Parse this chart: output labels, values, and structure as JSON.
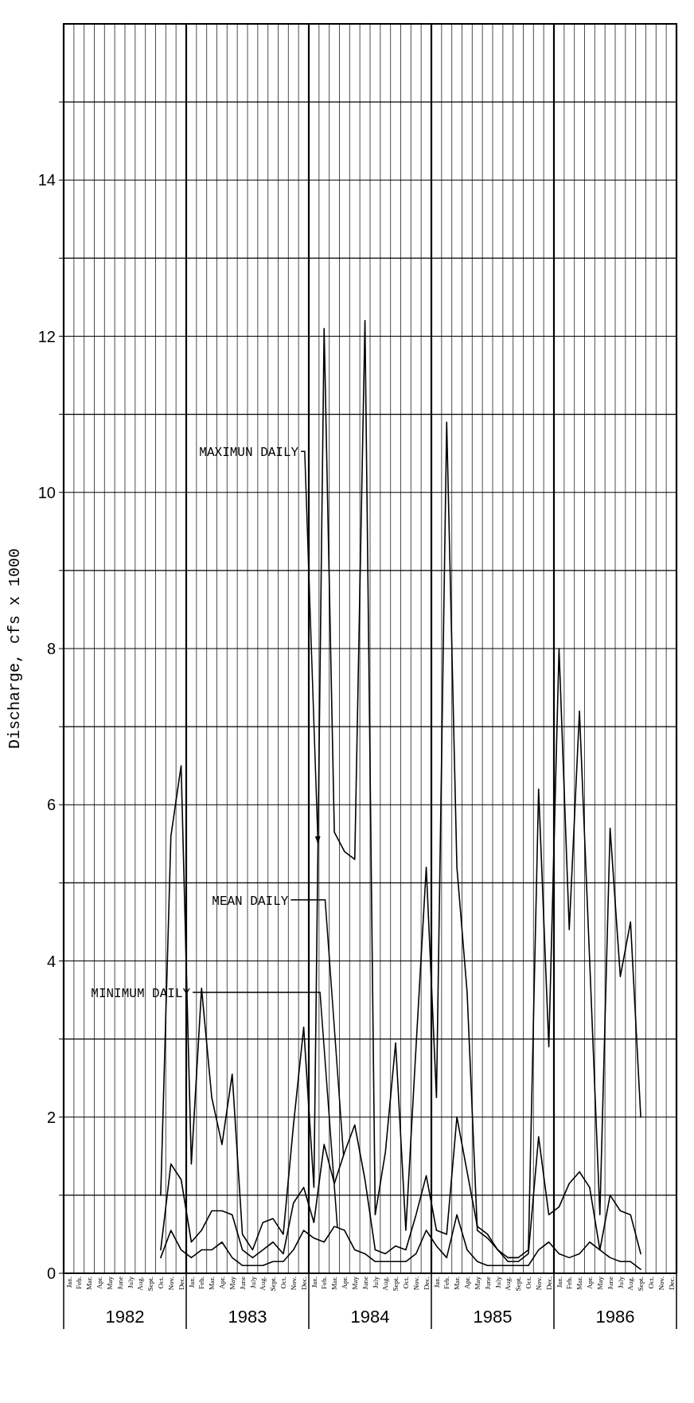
{
  "chart_data": {
    "type": "line",
    "ylabel": "Discharge, cfs x 1000",
    "categories": [
      "Jan.",
      "Feb.",
      "Mar.",
      "Apr.",
      "May",
      "June",
      "July",
      "Aug.",
      "Sept.",
      "Oct.",
      "Nov.",
      "Dec.",
      "Jan.",
      "Feb.",
      "Mar.",
      "Apr.",
      "May",
      "June",
      "July",
      "Aug.",
      "Sept.",
      "Oct.",
      "Nov.",
      "Dec.",
      "Jan.",
      "Feb.",
      "Mar.",
      "Apr.",
      "May",
      "June",
      "July",
      "Aug.",
      "Sept.",
      "Oct.",
      "Nov.",
      "Dec.",
      "Jan.",
      "Feb.",
      "Mar.",
      "Apr.",
      "May",
      "June",
      "July",
      "Aug.",
      "Sept.",
      "Oct.",
      "Nov.",
      "Dec.",
      "Jan.",
      "Feb.",
      "Mar.",
      "Apr.",
      "May",
      "June",
      "July",
      "Aug.",
      "Sept.",
      "Oct.",
      "Nov.",
      "Dec."
    ],
    "series": [
      {
        "name": "MAXIMUN DAILY",
        "color": "#000000",
        "values": [
          null,
          null,
          null,
          null,
          null,
          null,
          null,
          null,
          null,
          1.0,
          5.6,
          6.5,
          1.4,
          3.65,
          2.25,
          1.65,
          2.55,
          0.5,
          0.3,
          0.65,
          0.7,
          0.5,
          1.9,
          3.15,
          1.1,
          12.1,
          5.65,
          5.4,
          5.3,
          12.2,
          0.75,
          1.55,
          2.95,
          0.55,
          2.9,
          5.2,
          2.25,
          10.9,
          5.2,
          3.6,
          0.55,
          0.45,
          0.3,
          0.2,
          0.2,
          0.3,
          6.2,
          2.9,
          8.0,
          4.4,
          7.2,
          4.0,
          0.75,
          5.7,
          3.8,
          4.5,
          2.0,
          null,
          null,
          null
        ]
      },
      {
        "name": "MEAN DAILY",
        "color": "#000000",
        "values": [
          null,
          null,
          null,
          null,
          null,
          null,
          null,
          null,
          null,
          0.3,
          1.4,
          1.2,
          0.4,
          0.55,
          0.8,
          0.8,
          0.75,
          0.3,
          0.2,
          0.3,
          0.4,
          0.25,
          0.9,
          1.1,
          0.65,
          1.65,
          1.15,
          1.55,
          1.9,
          1.2,
          0.3,
          0.25,
          0.35,
          0.3,
          0.75,
          1.25,
          0.55,
          0.5,
          2.0,
          1.3,
          0.6,
          0.5,
          0.3,
          0.15,
          0.15,
          0.25,
          1.75,
          0.75,
          0.85,
          1.15,
          1.3,
          1.1,
          0.3,
          1.0,
          0.8,
          0.75,
          0.25,
          null,
          null,
          null
        ]
      },
      {
        "name": "MINIMUM DAILY",
        "color": "#000000",
        "values": [
          null,
          null,
          null,
          null,
          null,
          null,
          null,
          null,
          null,
          0.2,
          0.55,
          0.3,
          0.2,
          0.3,
          0.3,
          0.4,
          0.2,
          0.1,
          0.1,
          0.1,
          0.15,
          0.15,
          0.3,
          0.55,
          0.45,
          0.4,
          0.6,
          0.55,
          0.3,
          0.25,
          0.15,
          0.15,
          0.15,
          0.15,
          0.25,
          0.55,
          0.35,
          0.2,
          0.75,
          0.3,
          0.15,
          0.1,
          0.1,
          0.1,
          0.1,
          0.1,
          0.3,
          0.4,
          0.25,
          0.2,
          0.25,
          0.4,
          0.3,
          0.2,
          0.15,
          0.15,
          0.05,
          null,
          null,
          null
        ]
      }
    ],
    "ylim": [
      0,
      16
    ],
    "yticks": [
      0,
      {
        "value": 1,
        "label": null
      },
      2,
      {
        "value": 3,
        "label": null
      },
      4,
      {
        "value": 5,
        "label": null
      },
      6,
      {
        "value": 7,
        "label": null
      },
      8,
      {
        "value": 9,
        "label": null
      },
      10,
      {
        "value": 11,
        "label": null
      },
      12,
      {
        "value": 13,
        "label": null
      },
      14,
      {
        "value": 15,
        "label": null
      }
    ],
    "grid": true,
    "annotations": [
      "1982",
      "1983",
      "1984",
      "1985",
      "1986"
    ]
  }
}
